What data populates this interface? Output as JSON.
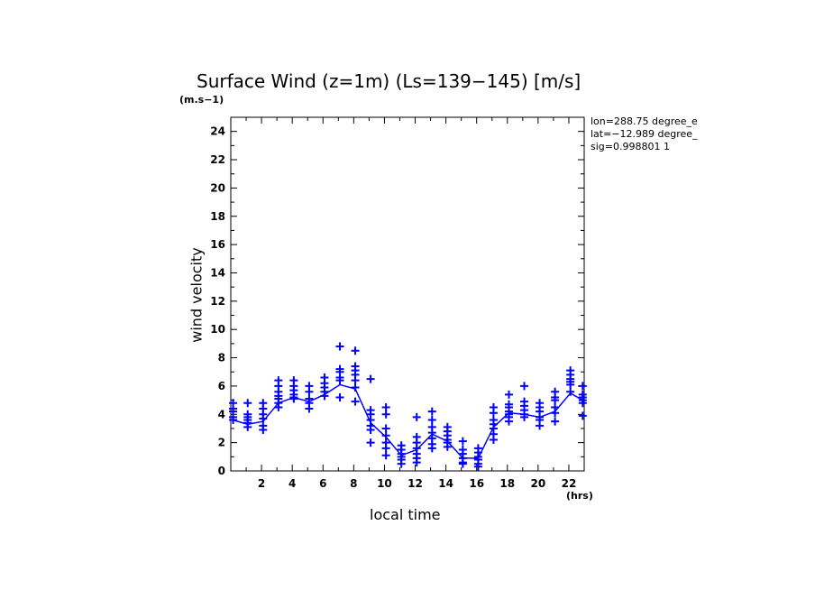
{
  "chart_data": {
    "type": "scatter",
    "title": "Surface Wind (z=1m) (Ls=139−145) [m/s]",
    "ylabel": "wind velocity",
    "y_unit": "(m.s−1)",
    "xlabel": "local time",
    "x_unit": "(hrs)",
    "info_lines": [
      "lon=288.75 degree_e",
      "lat=−12.989 degree_",
      "sig=0.998801 1"
    ],
    "xlim": [
      0,
      23
    ],
    "ylim": [
      0,
      25
    ],
    "x_ticks": [
      2,
      4,
      6,
      8,
      10,
      12,
      14,
      16,
      18,
      20,
      22
    ],
    "y_ticks": [
      0,
      2,
      4,
      6,
      8,
      10,
      12,
      14,
      16,
      18,
      20,
      22,
      24
    ],
    "grid": false,
    "color": "#0000ff",
    "series": [
      {
        "kind": "points",
        "points": [
          [
            0.15,
            4.8
          ],
          [
            0.15,
            4.4
          ],
          [
            0.15,
            4.2
          ],
          [
            0.15,
            3.8
          ],
          [
            0.15,
            3.6
          ],
          [
            1.1,
            4.8
          ],
          [
            1.1,
            4.0
          ],
          [
            1.1,
            3.8
          ],
          [
            1.1,
            3.6
          ],
          [
            1.1,
            3.4
          ],
          [
            1.1,
            3.1
          ],
          [
            2.1,
            4.8
          ],
          [
            2.1,
            4.4
          ],
          [
            2.1,
            4.0
          ],
          [
            2.1,
            3.7
          ],
          [
            2.1,
            3.2
          ],
          [
            2.1,
            2.9
          ],
          [
            3.1,
            6.4
          ],
          [
            3.1,
            6.0
          ],
          [
            3.1,
            5.6
          ],
          [
            3.1,
            5.3
          ],
          [
            3.1,
            5.1
          ],
          [
            3.1,
            4.8
          ],
          [
            3.1,
            4.5
          ],
          [
            4.1,
            6.4
          ],
          [
            4.1,
            6.0
          ],
          [
            4.1,
            5.7
          ],
          [
            4.1,
            5.4
          ],
          [
            4.1,
            5.2
          ],
          [
            4.1,
            5.1
          ],
          [
            5.1,
            6.0
          ],
          [
            5.1,
            5.6
          ],
          [
            5.1,
            5.1
          ],
          [
            5.1,
            4.8
          ],
          [
            5.1,
            4.4
          ],
          [
            6.1,
            6.6
          ],
          [
            6.1,
            6.2
          ],
          [
            6.1,
            5.9
          ],
          [
            6.1,
            5.6
          ],
          [
            6.1,
            5.3
          ],
          [
            7.1,
            8.8
          ],
          [
            7.1,
            7.2
          ],
          [
            7.1,
            7.0
          ],
          [
            7.1,
            6.6
          ],
          [
            7.1,
            6.4
          ],
          [
            7.1,
            5.2
          ],
          [
            8.1,
            8.5
          ],
          [
            8.1,
            7.4
          ],
          [
            8.1,
            7.1
          ],
          [
            8.1,
            6.8
          ],
          [
            8.1,
            6.4
          ],
          [
            8.1,
            5.9
          ],
          [
            8.1,
            4.9
          ],
          [
            9.1,
            6.5
          ],
          [
            9.1,
            4.3
          ],
          [
            9.1,
            4.0
          ],
          [
            9.1,
            3.6
          ],
          [
            9.1,
            3.2
          ],
          [
            9.1,
            2.9
          ],
          [
            9.1,
            2.0
          ],
          [
            10.1,
            4.5
          ],
          [
            10.1,
            4.0
          ],
          [
            10.1,
            3.0
          ],
          [
            10.1,
            2.5
          ],
          [
            10.1,
            2.0
          ],
          [
            10.1,
            1.6
          ],
          [
            10.1,
            1.1
          ],
          [
            11.1,
            1.8
          ],
          [
            11.1,
            1.5
          ],
          [
            11.1,
            1.2
          ],
          [
            11.1,
            1.0
          ],
          [
            11.1,
            0.8
          ],
          [
            11.1,
            0.5
          ],
          [
            12.1,
            3.8
          ],
          [
            12.1,
            2.4
          ],
          [
            12.1,
            2.0
          ],
          [
            12.1,
            1.6
          ],
          [
            12.1,
            1.2
          ],
          [
            12.1,
            0.9
          ],
          [
            12.1,
            0.6
          ],
          [
            13.1,
            4.2
          ],
          [
            13.1,
            3.6
          ],
          [
            13.1,
            3.1
          ],
          [
            13.1,
            2.7
          ],
          [
            13.1,
            2.3
          ],
          [
            13.1,
            1.9
          ],
          [
            13.1,
            1.6
          ],
          [
            14.1,
            3.1
          ],
          [
            14.1,
            2.8
          ],
          [
            14.1,
            2.5
          ],
          [
            14.1,
            2.2
          ],
          [
            14.1,
            2.0
          ],
          [
            14.1,
            1.7
          ],
          [
            15.1,
            2.1
          ],
          [
            15.1,
            1.5
          ],
          [
            15.1,
            1.2
          ],
          [
            15.1,
            0.9
          ],
          [
            15.1,
            0.6
          ],
          [
            15.1,
            0.5
          ],
          [
            16.1,
            1.6
          ],
          [
            16.1,
            1.3
          ],
          [
            16.1,
            1.0
          ],
          [
            16.1,
            0.8
          ],
          [
            16.1,
            0.5
          ],
          [
            16.1,
            0.3
          ],
          [
            17.1,
            4.5
          ],
          [
            17.1,
            4.1
          ],
          [
            17.1,
            3.6
          ],
          [
            17.1,
            3.3
          ],
          [
            17.1,
            3.0
          ],
          [
            17.1,
            2.6
          ],
          [
            17.1,
            2.2
          ],
          [
            18.1,
            5.4
          ],
          [
            18.1,
            4.7
          ],
          [
            18.1,
            4.5
          ],
          [
            18.1,
            4.2
          ],
          [
            18.1,
            4.0
          ],
          [
            18.1,
            3.8
          ],
          [
            18.1,
            3.5
          ],
          [
            19.1,
            6.0
          ],
          [
            19.1,
            4.9
          ],
          [
            19.1,
            4.6
          ],
          [
            19.1,
            4.3
          ],
          [
            19.1,
            4.0
          ],
          [
            19.1,
            3.8
          ],
          [
            20.1,
            4.8
          ],
          [
            20.1,
            4.5
          ],
          [
            20.1,
            4.2
          ],
          [
            20.1,
            3.8
          ],
          [
            20.1,
            3.6
          ],
          [
            20.1,
            3.2
          ],
          [
            21.1,
            5.6
          ],
          [
            21.1,
            5.2
          ],
          [
            21.1,
            5.0
          ],
          [
            21.1,
            4.5
          ],
          [
            21.1,
            4.1
          ],
          [
            21.1,
            3.5
          ],
          [
            22.1,
            7.1
          ],
          [
            22.1,
            6.8
          ],
          [
            22.1,
            6.5
          ],
          [
            22.1,
            6.3
          ],
          [
            22.1,
            6.1
          ],
          [
            22.1,
            5.6
          ],
          [
            22.9,
            6.0
          ],
          [
            22.9,
            5.4
          ],
          [
            22.9,
            5.2
          ],
          [
            22.9,
            5.0
          ],
          [
            22.9,
            4.8
          ],
          [
            22.9,
            3.9
          ]
        ]
      },
      {
        "kind": "line",
        "points": [
          [
            0.15,
            3.6
          ],
          [
            1.1,
            3.3
          ],
          [
            2.1,
            3.5
          ],
          [
            3.1,
            4.8
          ],
          [
            4.1,
            5.2
          ],
          [
            5.1,
            4.9
          ],
          [
            6.1,
            5.4
          ],
          [
            7.1,
            6.1
          ],
          [
            8.1,
            5.8
          ],
          [
            9.1,
            3.4
          ],
          [
            10.1,
            2.4
          ],
          [
            11.1,
            1.1
          ],
          [
            12.1,
            1.5
          ],
          [
            13.1,
            2.6
          ],
          [
            14.1,
            2.1
          ],
          [
            15.1,
            0.9
          ],
          [
            16.1,
            0.9
          ],
          [
            17.1,
            3.1
          ],
          [
            18.1,
            4.1
          ],
          [
            19.1,
            4.0
          ],
          [
            20.1,
            3.8
          ],
          [
            21.1,
            4.2
          ],
          [
            22.1,
            5.5
          ],
          [
            22.9,
            5.0
          ]
        ]
      }
    ]
  }
}
